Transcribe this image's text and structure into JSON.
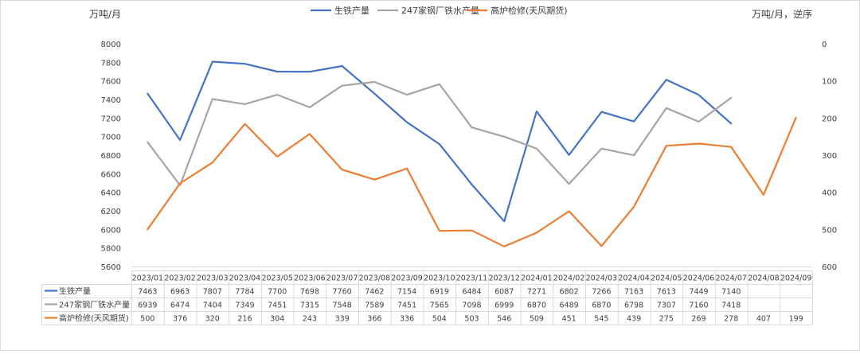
{
  "chart_data": {
    "type": "line",
    "title": "",
    "y_left_label": "万吨/月",
    "y_right_label": "万吨/月，逆序",
    "y_left_range": [
      5600,
      8000
    ],
    "y_left_ticks": [
      "5600",
      "5800",
      "6000",
      "6200",
      "6400",
      "6600",
      "6800",
      "7000",
      "7200",
      "7400",
      "7600",
      "7800",
      "8000"
    ],
    "y_right_range": [
      0,
      600
    ],
    "y_right_reversed": true,
    "y_right_ticks": [
      "0",
      "100",
      "200",
      "300",
      "400",
      "500",
      "600"
    ],
    "categories": [
      "2023/01",
      "2023/02",
      "2023/03",
      "2023/04",
      "2023/05",
      "2023/06",
      "2023/07",
      "2023/08",
      "2023/09",
      "2023/10",
      "2023/11",
      "2023/12",
      "2024/01",
      "2024/02",
      "2024/03",
      "2024/04",
      "2024/05",
      "2024/06",
      "2024/07",
      "2024/08",
      "2024/09"
    ],
    "legend_position": "top",
    "grid": false,
    "series": [
      {
        "name": "生铁产量",
        "axis": "left",
        "color": "#4472C4",
        "values": [
          7463,
          6963,
          7807,
          7784,
          7700,
          7698,
          7760,
          7462,
          7154,
          6919,
          6484,
          6087,
          7271,
          6802,
          7266,
          7163,
          7613,
          7449,
          7140,
          null,
          null
        ]
      },
      {
        "name": "247家钢厂铁水产量",
        "axis": "left",
        "color": "#A5A5A5",
        "values": [
          6939,
          6474,
          7404,
          7349,
          7451,
          7315,
          7548,
          7589,
          7451,
          7565,
          7098,
          6999,
          6870,
          6489,
          6870,
          6798,
          7307,
          7160,
          7418,
          null,
          null
        ]
      },
      {
        "name": "高炉检修(天风期货)",
        "axis": "right",
        "color": "#ED7D31",
        "values": [
          500,
          376,
          320,
          216,
          304,
          243,
          339,
          366,
          336,
          504,
          503,
          546,
          509,
          451,
          545,
          439,
          275,
          269,
          278,
          407,
          199
        ]
      }
    ]
  }
}
